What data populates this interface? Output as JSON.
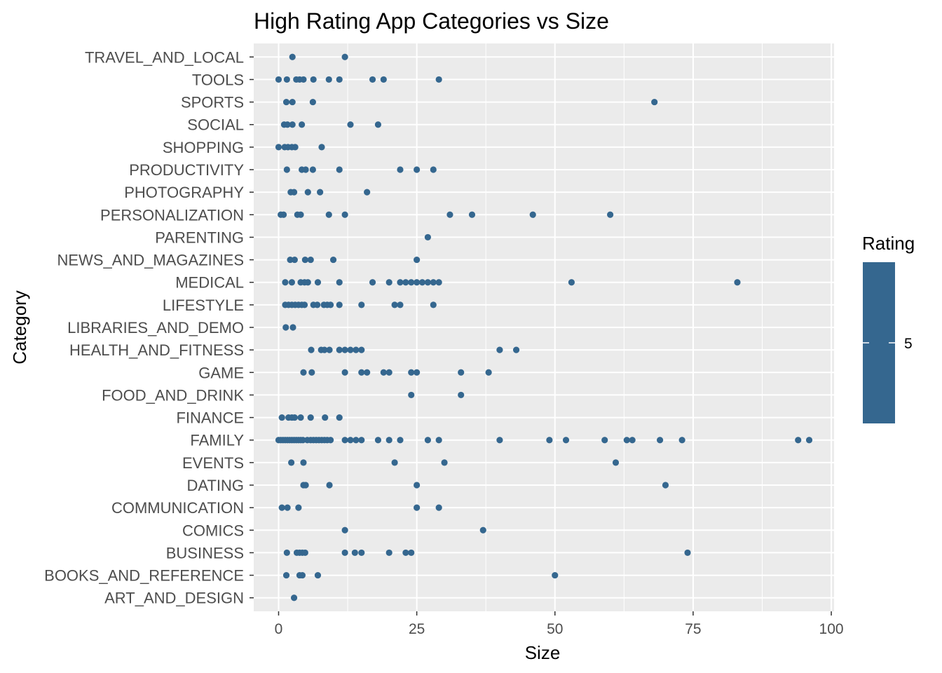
{
  "chart_data": {
    "type": "scatter",
    "title": "High Rating App Categories vs Size",
    "xlabel": "Size",
    "ylabel": "Category",
    "xlim": [
      -4.5,
      100.5
    ],
    "x_ticks": [
      0,
      25,
      50,
      75,
      100
    ],
    "grid": true,
    "point_color": "#35678f",
    "panel_color": "#ebebeb",
    "legend": {
      "title": "Rating",
      "position": "right",
      "tick_label": "5",
      "color": "#35678f"
    },
    "categories": [
      "ART_AND_DESIGN",
      "BOOKS_AND_REFERENCE",
      "BUSINESS",
      "COMICS",
      "COMMUNICATION",
      "DATING",
      "EVENTS",
      "FAMILY",
      "FINANCE",
      "FOOD_AND_DRINK",
      "GAME",
      "HEALTH_AND_FITNESS",
      "LIBRARIES_AND_DEMO",
      "LIFESTYLE",
      "MEDICAL",
      "NEWS_AND_MAGAZINES",
      "PARENTING",
      "PERSONALIZATION",
      "PHOTOGRAPHY",
      "PRODUCTIVITY",
      "SHOPPING",
      "SOCIAL",
      "SPORTS",
      "TOOLS",
      "TRAVEL_AND_LOCAL"
    ],
    "points": {
      "ART_AND_DESIGN": [
        2.8
      ],
      "BOOKS_AND_REFERENCE": [
        1.4,
        3.8,
        4.3,
        7.1,
        50.0
      ],
      "BUSINESS": [
        1.5,
        3.3,
        3.8,
        4.3,
        4.8,
        12.0,
        13.8,
        15.0,
        20.0,
        23.0,
        24.0,
        74.0
      ],
      "COMICS": [
        12.0,
        37.0
      ],
      "COMMUNICATION": [
        0.6,
        1.6,
        3.6,
        25.0,
        29.0
      ],
      "DATING": [
        4.5,
        4.9,
        9.2,
        25.0,
        70.0
      ],
      "EVENTS": [
        2.3,
        4.5,
        21.0,
        30.0,
        61.0
      ],
      "FAMILY": [
        0.0,
        0.4,
        0.8,
        1.2,
        1.6,
        2.0,
        2.4,
        2.8,
        3.2,
        3.6,
        4.0,
        4.4,
        5.2,
        5.8,
        6.3,
        6.8,
        7.3,
        7.8,
        8.3,
        8.8,
        9.4,
        12.0,
        13.0,
        14.0,
        15.0,
        18.0,
        20.0,
        22.0,
        27.0,
        29.0,
        40.0,
        49.0,
        52.0,
        59.0,
        63.0,
        64.0,
        69.0,
        73.0,
        94.0,
        96.0
      ],
      "FINANCE": [
        0.6,
        1.8,
        2.4,
        2.9,
        4.0,
        5.8,
        8.4,
        11.0
      ],
      "FOOD_AND_DRINK": [
        24.0,
        33.0
      ],
      "GAME": [
        4.5,
        6.0,
        12.0,
        15.0,
        16.0,
        19.0,
        20.0,
        24.0,
        25.0,
        33.0,
        38.0
      ],
      "HEALTH_AND_FITNESS": [
        5.9,
        7.7,
        8.3,
        9.2,
        11.0,
        12.0,
        13.0,
        14.0,
        15.0,
        40.0,
        43.0
      ],
      "LIBRARIES_AND_DEMO": [
        1.3,
        2.6
      ],
      "LIFESTYLE": [
        1.2,
        1.8,
        2.4,
        3.0,
        3.6,
        4.2,
        4.7,
        6.3,
        7.0,
        8.2,
        8.8,
        9.4,
        11.0,
        15.0,
        21.0,
        22.0,
        28.0
      ],
      "MEDICAL": [
        1.2,
        2.4,
        4.0,
        4.7,
        5.3,
        7.1,
        11.0,
        17.0,
        20.0,
        22.0,
        23.0,
        24.0,
        25.0,
        26.0,
        27.0,
        28.0,
        29.0,
        53.0,
        83.0
      ],
      "NEWS_AND_MAGAZINES": [
        2.1,
        2.9,
        4.8,
        5.8,
        9.9,
        25.0
      ],
      "PARENTING": [
        27.0
      ],
      "PERSONALIZATION": [
        0.4,
        0.9,
        3.4,
        4.0,
        9.1,
        12.0,
        31.0,
        35.0,
        46.0,
        60.0
      ],
      "PHOTOGRAPHY": [
        2.2,
        2.8,
        5.3,
        7.5,
        16.0
      ],
      "PRODUCTIVITY": [
        1.5,
        4.2,
        4.9,
        6.2,
        11.0,
        22.0,
        25.0,
        28.0
      ],
      "SHOPPING": [
        0.0,
        1.1,
        1.7,
        2.4,
        3.0,
        7.8
      ],
      "SOCIAL": [
        1.0,
        1.6,
        2.5,
        4.2,
        13.0,
        18.0
      ],
      "SPORTS": [
        1.4,
        2.5,
        6.2,
        68.0
      ],
      "TOOLS": [
        0.0,
        1.5,
        3.2,
        3.8,
        4.5,
        6.3,
        9.1,
        11.0,
        17.0,
        19.0,
        29.0
      ],
      "TRAVEL_AND_LOCAL": [
        2.5,
        12.0
      ]
    }
  }
}
